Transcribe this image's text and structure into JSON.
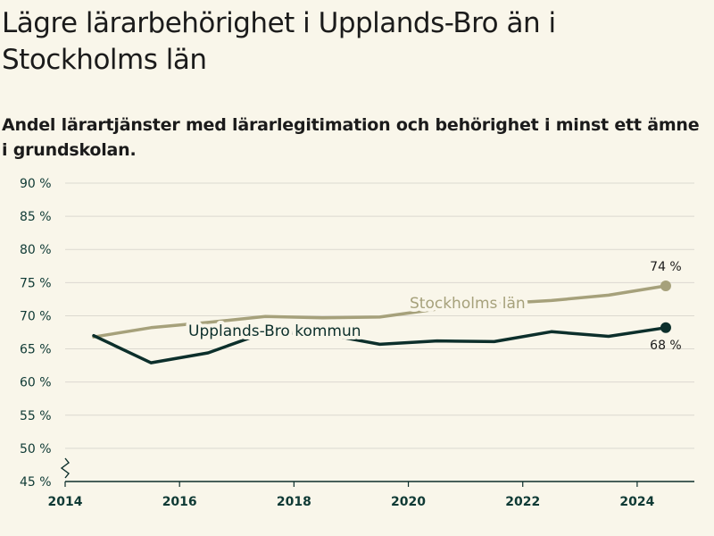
{
  "title": "Lägre lärarbehörighet i Upplands-Bro än i Stockholms län",
  "subtitle": "Andel lärartjänster med lärarlegitimation och behörighet i minst ett ämne i grundskolan.",
  "colors": {
    "background": "#f9f6ea",
    "upplands_bro": "#0c2f2b",
    "stockholm": "#a6a17b",
    "grid": "#dcd9d0",
    "axis": "#0c2f2b"
  },
  "chart_data": {
    "type": "line",
    "x": [
      2014.5,
      2015.5,
      2016.5,
      2017.5,
      2018.5,
      2019.5,
      2020.5,
      2021.5,
      2022.5,
      2023.5,
      2024.5
    ],
    "series": [
      {
        "name": "Stockholms län",
        "color": "#a6a17b",
        "values": [
          66.8,
          68.2,
          69.0,
          69.9,
          69.7,
          69.8,
          71.0,
          71.8,
          72.3,
          73.1,
          74.5
        ],
        "end_label": "74 %"
      },
      {
        "name": "Upplands-Bro kommun",
        "color": "#0c2f2b",
        "values": [
          67.0,
          62.9,
          64.4,
          67.5,
          67.3,
          65.7,
          66.2,
          66.1,
          67.6,
          66.9,
          68.2
        ],
        "end_label": "68 %"
      }
    ],
    "xlim": [
      2014,
      2025
    ],
    "ylim": [
      45,
      90
    ],
    "x_ticks": [
      2014,
      2016,
      2018,
      2020,
      2022,
      2024
    ],
    "y_ticks": [
      {
        "value": 45,
        "label": "45 %"
      },
      {
        "value": 50,
        "label": "50 %"
      },
      {
        "value": 55,
        "label": "55 %"
      },
      {
        "value": 60,
        "label": "60 %"
      },
      {
        "value": 65,
        "label": "65 %"
      },
      {
        "value": 70,
        "label": "70 %"
      },
      {
        "value": 75,
        "label": "75 %"
      },
      {
        "value": 80,
        "label": "80 %"
      },
      {
        "value": 85,
        "label": "85 %"
      },
      {
        "value": 90,
        "label": "90 %"
      }
    ],
    "axis_break": true,
    "grid": true,
    "legend": "inline"
  }
}
